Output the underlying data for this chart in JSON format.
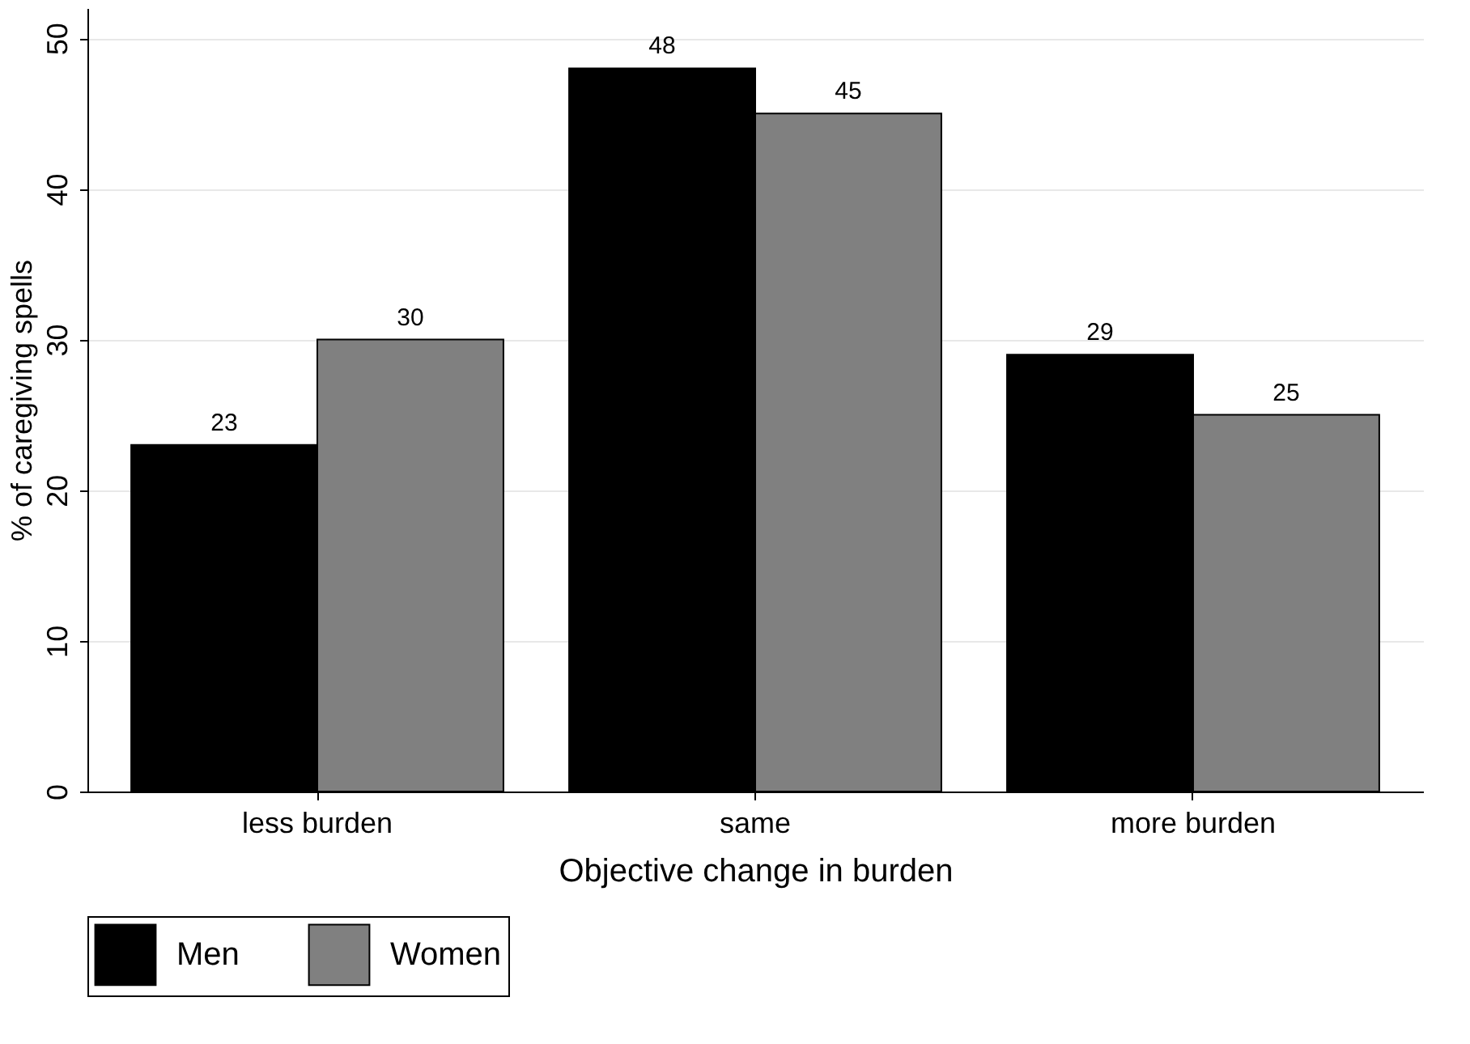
{
  "chart_data": {
    "type": "bar",
    "xlabel": "Objective change in burden",
    "ylabel": "% of caregiving spells",
    "categories": [
      "less burden",
      "same",
      "more burden"
    ],
    "series": [
      {
        "name": "Men",
        "color": "#000000",
        "values": [
          23,
          48,
          29
        ]
      },
      {
        "name": "Women",
        "color": "#808080",
        "values": [
          30,
          45,
          25
        ]
      }
    ],
    "ylim": [
      0,
      52
    ],
    "yticks": [
      0,
      10,
      20,
      30,
      40,
      50
    ],
    "grid": "y",
    "legend": "bottom",
    "data_labels": true
  }
}
